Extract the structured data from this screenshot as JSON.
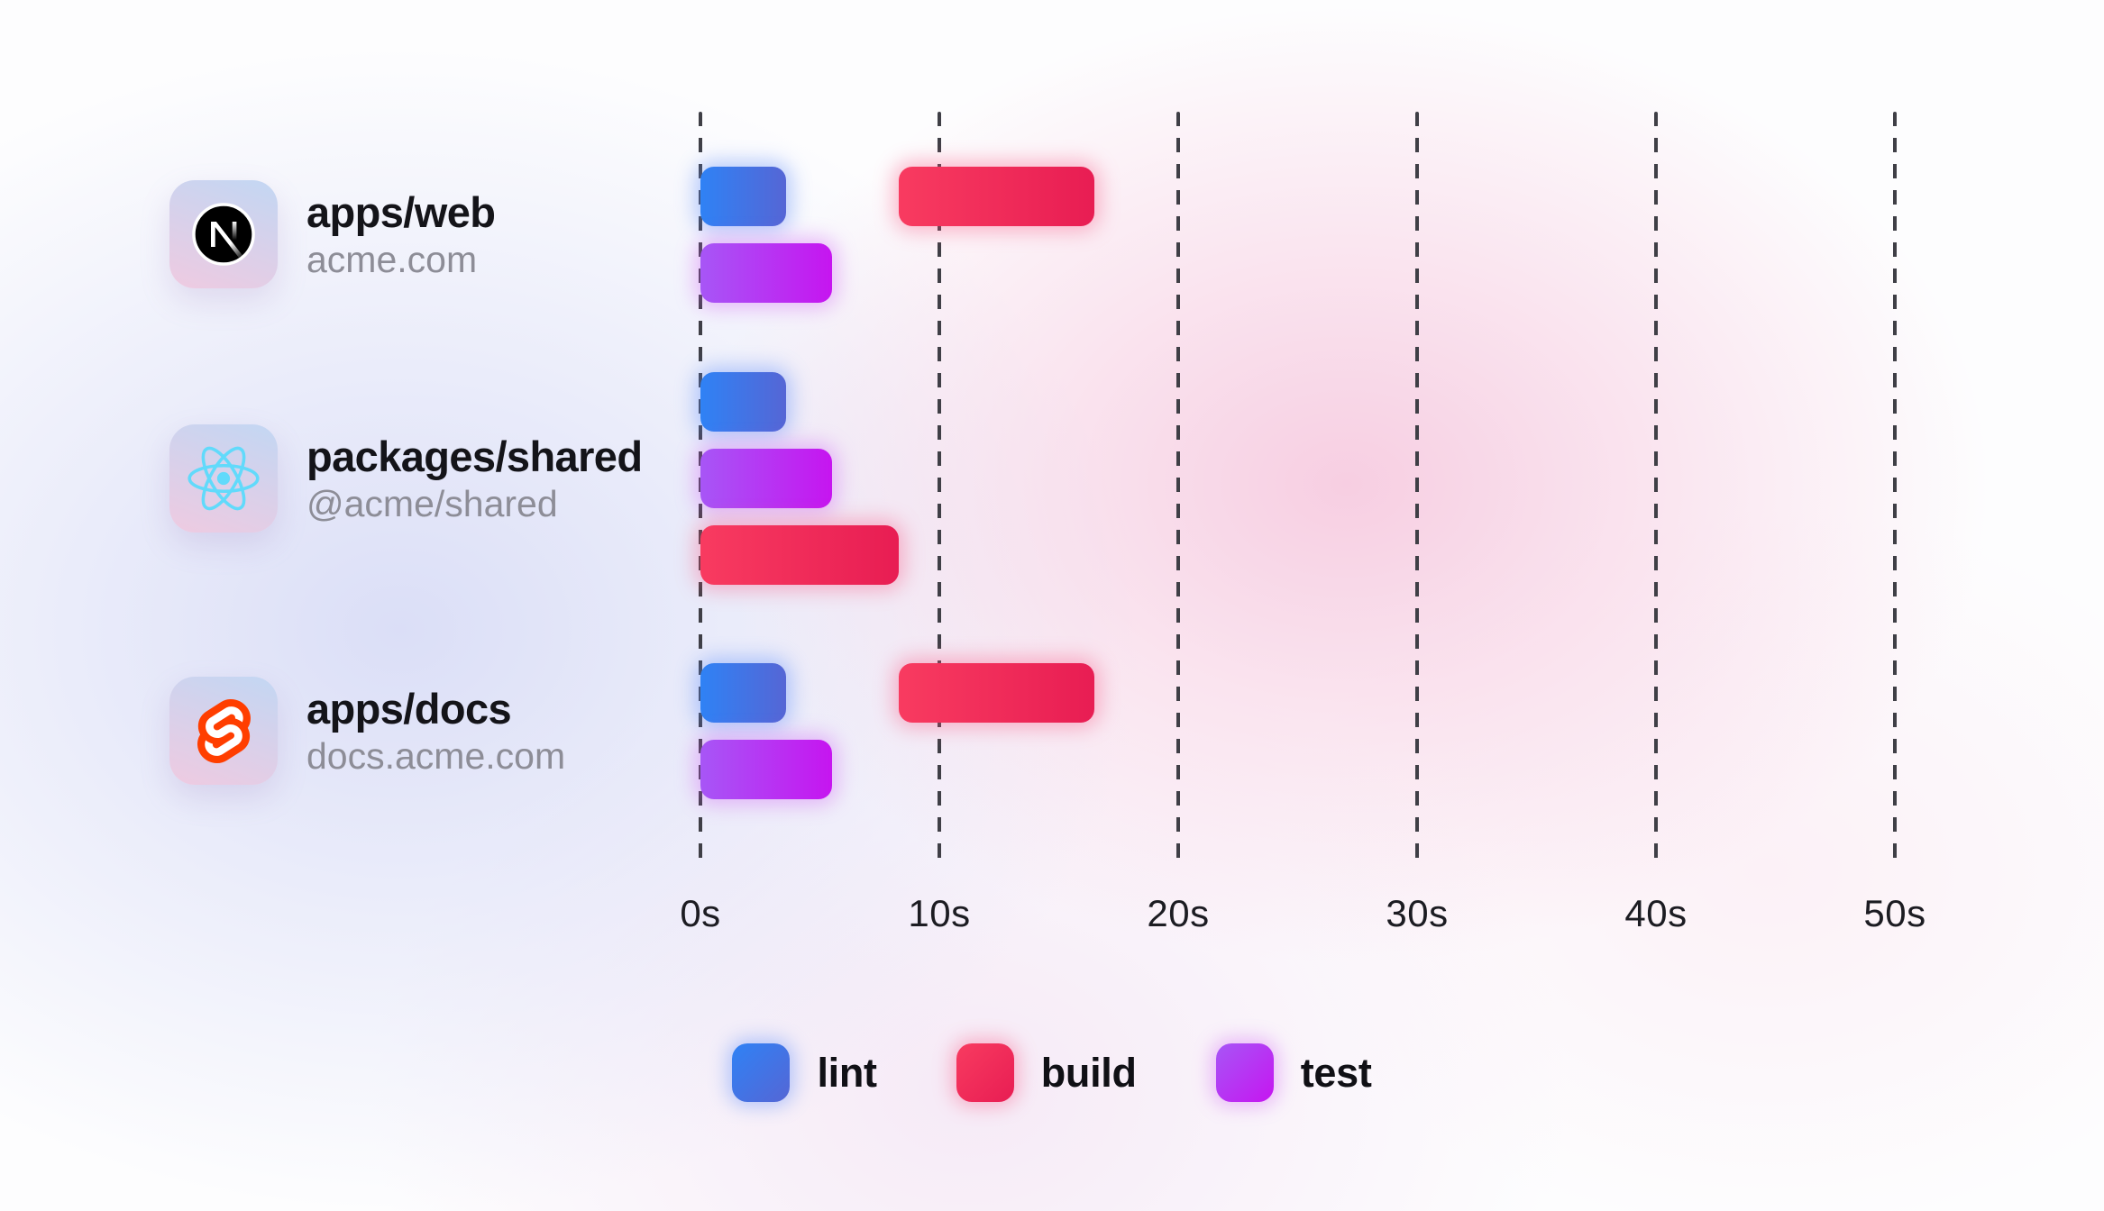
{
  "chart_data": {
    "type": "gantt",
    "description": "Monorepo task timeline showing lint, build and test durations per workspace package",
    "x_axis": {
      "unit": "seconds",
      "min": 0,
      "max": 50,
      "gridline_style": "dashed",
      "ticks": [
        {
          "value": 0,
          "label": "0s"
        },
        {
          "value": 10,
          "label": "10s"
        },
        {
          "value": 20,
          "label": "20s"
        },
        {
          "value": 30,
          "label": "30s"
        },
        {
          "value": 40,
          "label": "40s"
        },
        {
          "value": 50,
          "label": "50s"
        }
      ]
    },
    "rows": [
      {
        "name": "apps/web",
        "subtitle": "acme.com",
        "icon": "nextjs-icon",
        "tasks": [
          {
            "task": "lint",
            "start_s": 0,
            "end_s": 3.6,
            "lane": 0
          },
          {
            "task": "build",
            "start_s": 8.3,
            "end_s": 16.5,
            "lane": 0
          },
          {
            "task": "test",
            "start_s": 0,
            "end_s": 5.5,
            "lane": 1
          }
        ]
      },
      {
        "name": "packages/shared",
        "subtitle": "@acme/shared",
        "icon": "react-icon",
        "tasks": [
          {
            "task": "lint",
            "start_s": 0,
            "end_s": 3.6,
            "lane": 0
          },
          {
            "task": "test",
            "start_s": 0,
            "end_s": 5.5,
            "lane": 1
          },
          {
            "task": "build",
            "start_s": 0,
            "end_s": 8.3,
            "lane": 2
          }
        ]
      },
      {
        "name": "apps/docs",
        "subtitle": "docs.acme.com",
        "icon": "svelte-icon",
        "tasks": [
          {
            "task": "lint",
            "start_s": 0,
            "end_s": 3.6,
            "lane": 0
          },
          {
            "task": "build",
            "start_s": 8.3,
            "end_s": 16.5,
            "lane": 0
          },
          {
            "task": "test",
            "start_s": 0,
            "end_s": 5.5,
            "lane": 1
          }
        ]
      }
    ],
    "legend": [
      {
        "task": "lint",
        "label": "lint"
      },
      {
        "task": "build",
        "label": "build"
      },
      {
        "task": "test",
        "label": "test"
      }
    ],
    "task_colors": {
      "lint": {
        "from": "#2f82f5",
        "to": "#5566d5",
        "glow": "rgba(100,145,250,0.45)"
      },
      "build": {
        "from": "#f83b60",
        "to": "#e81d53",
        "glow": "rgba(250,85,130,0.40)"
      },
      "test": {
        "from": "#a756f6",
        "to": "#c615f0",
        "glow": "rgba(208,92,245,0.40)"
      }
    },
    "icon_colors": {
      "nextjs": "#000000",
      "react": "#61dafb",
      "svelte": "#ff3e00"
    },
    "gridline_color": "#3f3f46"
  }
}
